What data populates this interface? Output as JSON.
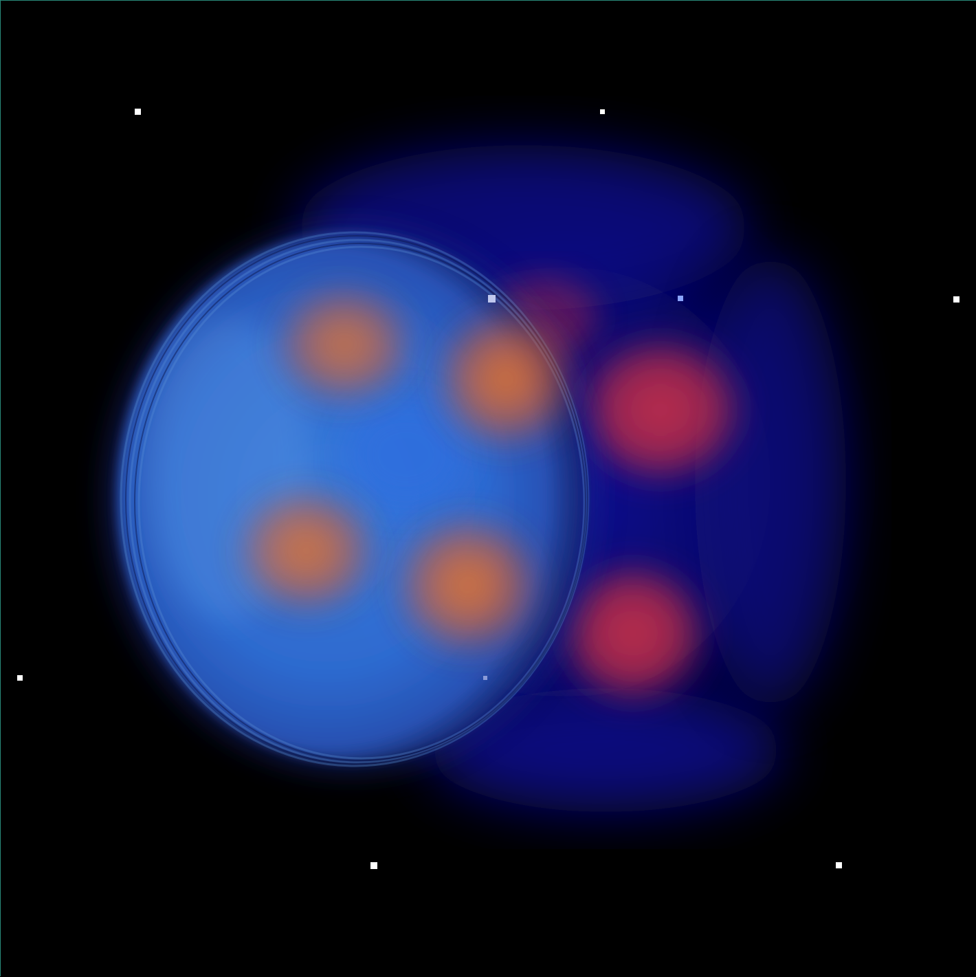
{
  "view": {
    "name": "volume-render-viewport",
    "background_color": "#000000",
    "border_color": "#2a8a7a"
  },
  "volume": {
    "colors": {
      "outer_haze": "#0a0a8c",
      "shell_blue": "#2f6fd6",
      "shell_light": "#6fa6e8",
      "lobe_orange": "#e0642a",
      "lobe_red": "#c8304a"
    }
  },
  "bounding_box_corners": {
    "color": "#ffffff",
    "count": 10
  }
}
